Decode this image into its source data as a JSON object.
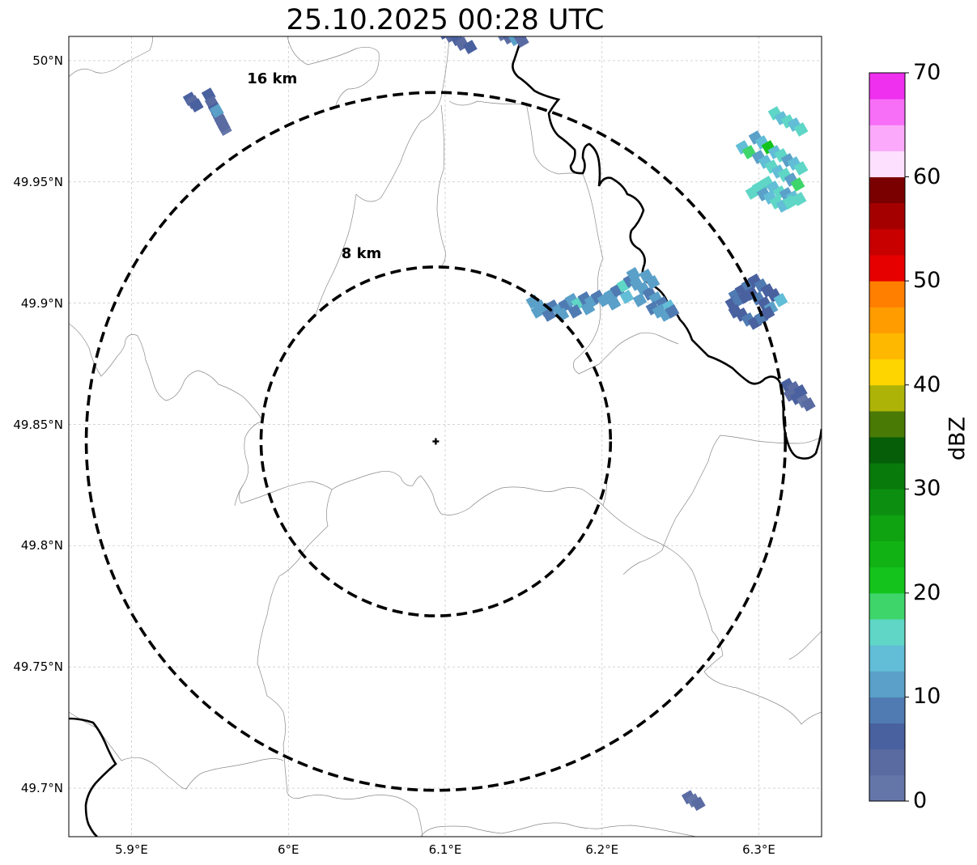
{
  "title": "25.10.2025 00:28 UTC",
  "axes": {
    "xlim": [
      5.86,
      6.34
    ],
    "ylim": [
      49.68,
      50.01
    ],
    "x_ticks": [
      {
        "value": 5.9,
        "label": "5.9°E"
      },
      {
        "value": 6.0,
        "label": "6°E"
      },
      {
        "value": 6.1,
        "label": "6.1°E"
      },
      {
        "value": 6.2,
        "label": "6.2°E"
      },
      {
        "value": 6.3,
        "label": "6.3°E"
      }
    ],
    "y_ticks": [
      {
        "value": 50.0,
        "label": "50°N"
      },
      {
        "value": 49.95,
        "label": "49.95°N"
      },
      {
        "value": 49.9,
        "label": "49.9°N"
      },
      {
        "value": 49.85,
        "label": "49.85°N"
      },
      {
        "value": 49.8,
        "label": "49.8°N"
      },
      {
        "value": 49.75,
        "label": "49.75°N"
      },
      {
        "value": 49.7,
        "label": "49.7°N"
      }
    ],
    "grid": true
  },
  "radar_center": {
    "lon": 6.094,
    "lat": 49.843
  },
  "range_rings": [
    {
      "radius_km": 8,
      "label": "8 km"
    },
    {
      "radius_km": 16,
      "label": "16 km"
    }
  ],
  "colorbar": {
    "label": "dBZ",
    "min": 0,
    "max": 70,
    "tick_labels": [
      "0",
      "10",
      "20",
      "30",
      "40",
      "50",
      "60",
      "70"
    ],
    "colors": [
      "#6476a8",
      "#5a6ba2",
      "#4a619f",
      "#4f7bb2",
      "#5aa0c8",
      "#62bdd6",
      "#5fd6c6",
      "#3ed66a",
      "#14c41c",
      "#11b314",
      "#0fa211",
      "#0c8f10",
      "#087a0c",
      "#065e09",
      "#4a7a06",
      "#aeb407",
      "#ffd500",
      "#ffb800",
      "#ff9c00",
      "#ff7f00",
      "#e60000",
      "#c80000",
      "#a50000",
      "#7a0000",
      "#fde0fd",
      "#fbaafb",
      "#f76ef7",
      "#ef30ef"
    ]
  },
  "echo_clusters": [
    {
      "name": "north-central",
      "lon": 6.13,
      "lat": 50.005,
      "dbz": 4
    },
    {
      "name": "north-left-a",
      "lon": 5.94,
      "lat": 49.983,
      "dbz": 4
    },
    {
      "name": "north-left-b",
      "lon": 5.955,
      "lat": 49.978,
      "dbz": 4
    },
    {
      "name": "northeast-cell",
      "lon": 6.31,
      "lat": 49.955,
      "dbz": 14
    },
    {
      "name": "central-east-band",
      "lon": 6.2,
      "lat": 49.9,
      "dbz": 10
    },
    {
      "name": "east-cell",
      "lon": 6.295,
      "lat": 49.9,
      "dbz": 7
    },
    {
      "name": "east-small",
      "lon": 6.322,
      "lat": 49.863,
      "dbz": 4
    },
    {
      "name": "southeast-speck",
      "lon": 6.258,
      "lat": 49.695,
      "dbz": 2
    }
  ]
}
